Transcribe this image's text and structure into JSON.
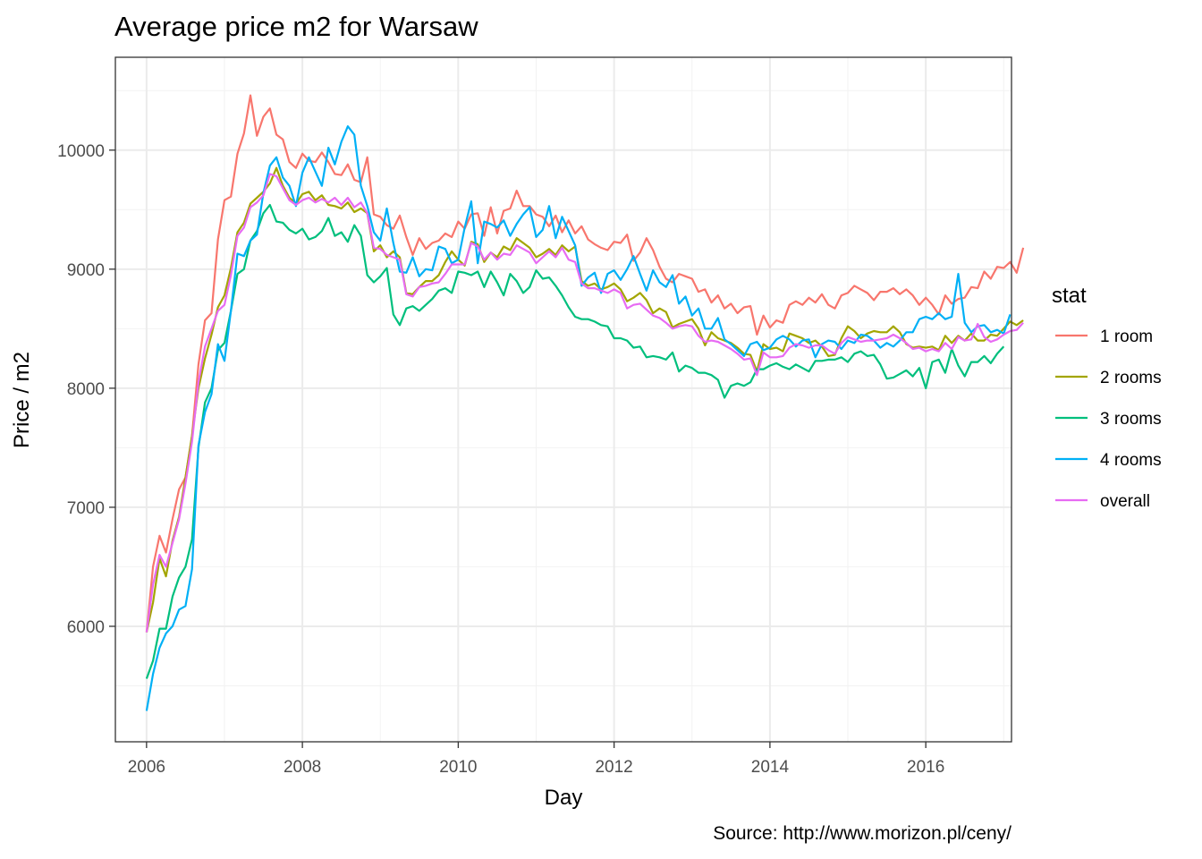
{
  "chart_data": {
    "type": "line",
    "title": "Average price m2 for Warsaw",
    "xlabel": "Day",
    "ylabel": "Price / m2",
    "caption": "Source: http://www.morizon.pl/ceny/",
    "legend_title": "stat",
    "legend_position": "right",
    "grid": true,
    "xlim": [
      2005.6,
      2017.1
    ],
    "ylim": [
      5030,
      10780
    ],
    "x_ticks": [
      2006,
      2008,
      2010,
      2012,
      2014,
      2016
    ],
    "y_ticks": [
      6000,
      7000,
      8000,
      9000,
      10000
    ],
    "x_start": 2006.0,
    "x_step": 0.0833333,
    "series": [
      {
        "name": "1 room",
        "color": "#F8766D",
        "values": [
          5950,
          6500,
          6760,
          6620,
          6900,
          7150,
          7250,
          7600,
          8200,
          8570,
          8630,
          9250,
          9580,
          9610,
          9970,
          10140,
          10460,
          10120,
          10280,
          10350,
          10130,
          10090,
          9900,
          9850,
          9970,
          9910,
          9900,
          9980,
          9900,
          9800,
          9790,
          9880,
          9750,
          9730,
          9940,
          9460,
          9440,
          9370,
          9340,
          9450,
          9270,
          9120,
          9260,
          9170,
          9220,
          9240,
          9300,
          9270,
          9400,
          9340,
          9460,
          9470,
          9280,
          9520,
          9300,
          9490,
          9510,
          9660,
          9530,
          9530,
          9460,
          9440,
          9360,
          9450,
          9310,
          9410,
          9300,
          9360,
          9250,
          9210,
          9180,
          9160,
          9230,
          9220,
          9290,
          9070,
          9140,
          9260,
          9160,
          9020,
          8920,
          8890,
          8960,
          8940,
          8920,
          8810,
          8830,
          8720,
          8780,
          8670,
          8710,
          8630,
          8680,
          8690,
          8450,
          8610,
          8510,
          8570,
          8550,
          8700,
          8730,
          8700,
          8760,
          8720,
          8790,
          8700,
          8670,
          8780,
          8800,
          8860,
          8830,
          8800,
          8740,
          8810,
          8810,
          8840,
          8790,
          8830,
          8780,
          8700,
          8760,
          8700,
          8620,
          8780,
          8710,
          8750,
          8760,
          8850,
          8840,
          8980,
          8920,
          9020,
          9010,
          9060,
          8970,
          9180
        ]
      },
      {
        "name": "2 rooms",
        "color": "#A3A500",
        "values": [
          5950,
          6200,
          6570,
          6420,
          6720,
          6920,
          7250,
          7600,
          8000,
          8250,
          8450,
          8680,
          8780,
          9010,
          9310,
          9390,
          9550,
          9600,
          9650,
          9720,
          9850,
          9700,
          9600,
          9550,
          9630,
          9650,
          9580,
          9620,
          9540,
          9530,
          9510,
          9560,
          9480,
          9510,
          9470,
          9150,
          9200,
          9100,
          9150,
          9100,
          8800,
          8790,
          8850,
          8900,
          8900,
          8950,
          9060,
          9150,
          9080,
          9030,
          9230,
          9210,
          9060,
          9140,
          9100,
          9190,
          9160,
          9260,
          9220,
          9180,
          9100,
          9130,
          9170,
          9120,
          9200,
          9150,
          9190,
          8900,
          8860,
          8880,
          8830,
          8850,
          8880,
          8830,
          8730,
          8760,
          8800,
          8740,
          8630,
          8670,
          8640,
          8510,
          8540,
          8560,
          8580,
          8500,
          8360,
          8470,
          8420,
          8400,
          8380,
          8340,
          8290,
          8280,
          8140,
          8370,
          8330,
          8340,
          8310,
          8460,
          8440,
          8420,
          8380,
          8400,
          8350,
          8270,
          8280,
          8420,
          8520,
          8480,
          8420,
          8460,
          8480,
          8470,
          8470,
          8520,
          8470,
          8370,
          8340,
          8350,
          8340,
          8350,
          8320,
          8440,
          8380,
          8440,
          8400,
          8460,
          8400,
          8400,
          8450,
          8440,
          8500,
          8560,
          8530,
          8570
        ]
      },
      {
        "name": "3 rooms",
        "color": "#00BF7D",
        "values": [
          5560,
          5710,
          5980,
          5980,
          6250,
          6410,
          6500,
          6730,
          7500,
          7880,
          8000,
          8320,
          8380,
          8650,
          8960,
          9000,
          9240,
          9320,
          9470,
          9540,
          9400,
          9390,
          9330,
          9300,
          9340,
          9250,
          9270,
          9320,
          9430,
          9280,
          9310,
          9230,
          9370,
          9280,
          8950,
          8890,
          8940,
          9010,
          8620,
          8530,
          8670,
          8690,
          8650,
          8700,
          8750,
          8820,
          8840,
          8800,
          8980,
          8970,
          8950,
          8980,
          8850,
          8980,
          8890,
          8780,
          8960,
          8900,
          8800,
          8850,
          8990,
          8920,
          8930,
          8860,
          8780,
          8680,
          8600,
          8580,
          8580,
          8560,
          8530,
          8520,
          8420,
          8420,
          8400,
          8340,
          8350,
          8260,
          8270,
          8260,
          8240,
          8300,
          8140,
          8190,
          8170,
          8130,
          8130,
          8110,
          8070,
          7920,
          8020,
          8040,
          8020,
          8050,
          8160,
          8160,
          8190,
          8210,
          8180,
          8160,
          8200,
          8170,
          8140,
          8230,
          8230,
          8240,
          8240,
          8260,
          8220,
          8290,
          8310,
          8270,
          8280,
          8200,
          8080,
          8090,
          8120,
          8150,
          8100,
          8170,
          8000,
          8220,
          8240,
          8130,
          8330,
          8190,
          8100,
          8220,
          8220,
          8270,
          8210,
          8290,
          8350
        ]
      },
      {
        "name": "4 rooms",
        "color": "#00B0F6",
        "values": [
          5290,
          5600,
          5820,
          5940,
          6000,
          6140,
          6170,
          6480,
          7520,
          7800,
          7950,
          8370,
          8230,
          8650,
          9130,
          9110,
          9240,
          9290,
          9640,
          9870,
          9940,
          9770,
          9700,
          9530,
          9810,
          9940,
          9820,
          9700,
          10020,
          9880,
          10070,
          10200,
          10130,
          9700,
          9530,
          9310,
          9240,
          9510,
          9220,
          8980,
          8970,
          9100,
          8940,
          9000,
          8990,
          9190,
          9170,
          9050,
          9080,
          9350,
          9570,
          9050,
          9400,
          9380,
          9350,
          9410,
          9280,
          9380,
          9460,
          9520,
          9270,
          9330,
          9530,
          9260,
          9440,
          9320,
          9200,
          8860,
          8930,
          8970,
          8800,
          8960,
          8990,
          8910,
          9000,
          9110,
          8960,
          8820,
          8990,
          8890,
          8850,
          8950,
          8710,
          8770,
          8610,
          8670,
          8500,
          8500,
          8590,
          8410,
          8370,
          8320,
          8270,
          8370,
          8390,
          8320,
          8340,
          8410,
          8440,
          8410,
          8350,
          8400,
          8410,
          8260,
          8370,
          8400,
          8390,
          8330,
          8400,
          8380,
          8450,
          8440,
          8400,
          8340,
          8380,
          8350,
          8400,
          8470,
          8470,
          8580,
          8600,
          8580,
          8630,
          8580,
          8600,
          8960,
          8550,
          8470,
          8520,
          8530,
          8470,
          8490,
          8460,
          8620
        ]
      },
      {
        "name": "overall",
        "color": "#E76BF3",
        "values": [
          5950,
          6350,
          6600,
          6500,
          6700,
          6900,
          7200,
          7550,
          8050,
          8350,
          8500,
          8650,
          8700,
          8950,
          9280,
          9350,
          9520,
          9560,
          9620,
          9800,
          9780,
          9680,
          9580,
          9540,
          9580,
          9600,
          9560,
          9590,
          9560,
          9600,
          9540,
          9600,
          9520,
          9560,
          9470,
          9180,
          9170,
          9120,
          9100,
          9080,
          8790,
          8770,
          8850,
          8860,
          8880,
          8890,
          8960,
          9040,
          9040,
          9040,
          9220,
          9190,
          9080,
          9140,
          9080,
          9130,
          9120,
          9200,
          9170,
          9140,
          9050,
          9100,
          9150,
          9100,
          9180,
          9080,
          9060,
          8880,
          8840,
          8840,
          8820,
          8800,
          8830,
          8800,
          8670,
          8700,
          8710,
          8660,
          8610,
          8590,
          8550,
          8500,
          8520,
          8530,
          8520,
          8440,
          8390,
          8400,
          8390,
          8360,
          8330,
          8290,
          8240,
          8250,
          8110,
          8300,
          8260,
          8260,
          8270,
          8340,
          8370,
          8360,
          8340,
          8360,
          8360,
          8320,
          8290,
          8380,
          8430,
          8410,
          8390,
          8400,
          8400,
          8410,
          8420,
          8450,
          8420,
          8380,
          8330,
          8340,
          8310,
          8330,
          8310,
          8380,
          8330,
          8430,
          8400,
          8410,
          8540,
          8430,
          8390,
          8410,
          8450,
          8480,
          8490,
          8550
        ]
      }
    ]
  }
}
